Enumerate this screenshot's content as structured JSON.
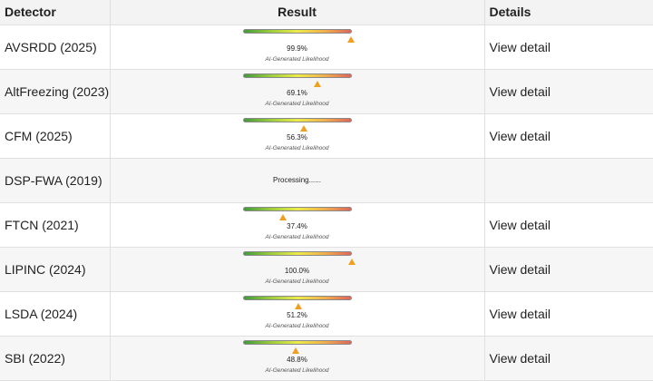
{
  "table": {
    "headers": {
      "detector": "Detector",
      "result": "Result",
      "details": "Details"
    },
    "likelihood_caption": "AI-Generated Likelihood",
    "rows": [
      {
        "detector": "AVSRDD (2025)",
        "percent": "99.9%",
        "value": 0.999,
        "status": "done",
        "details": "View detail"
      },
      {
        "detector": "AltFreezing (2023)",
        "percent": "69.1%",
        "value": 0.691,
        "status": "done",
        "details": "View detail"
      },
      {
        "detector": "CFM (2025)",
        "percent": "56.3%",
        "value": 0.563,
        "status": "done",
        "details": "View detail"
      },
      {
        "detector": "DSP-FWA (2019)",
        "status": "processing",
        "processing_text": "Processing......",
        "details": ""
      },
      {
        "detector": "FTCN (2021)",
        "percent": "37.4%",
        "value": 0.374,
        "status": "done",
        "details": "View detail"
      },
      {
        "detector": "LIPINC (2024)",
        "percent": "100.0%",
        "value": 1.0,
        "status": "done",
        "details": "View detail"
      },
      {
        "detector": "LSDA (2024)",
        "percent": "51.2%",
        "value": 0.512,
        "status": "done",
        "details": "View detail"
      },
      {
        "detector": "SBI (2022)",
        "percent": "48.8%",
        "value": 0.488,
        "status": "done",
        "details": "View detail"
      }
    ]
  },
  "colors": {
    "gradient_low": "#3f9b3a",
    "gradient_mid": "#ecec4a",
    "gradient_high": "#e0645a",
    "marker": "#f0a020",
    "header_bg": "#f3f3f3",
    "stripe_bg": "#f6f6f6"
  },
  "icons": {
    "marker": "triangle-marker-icon"
  }
}
